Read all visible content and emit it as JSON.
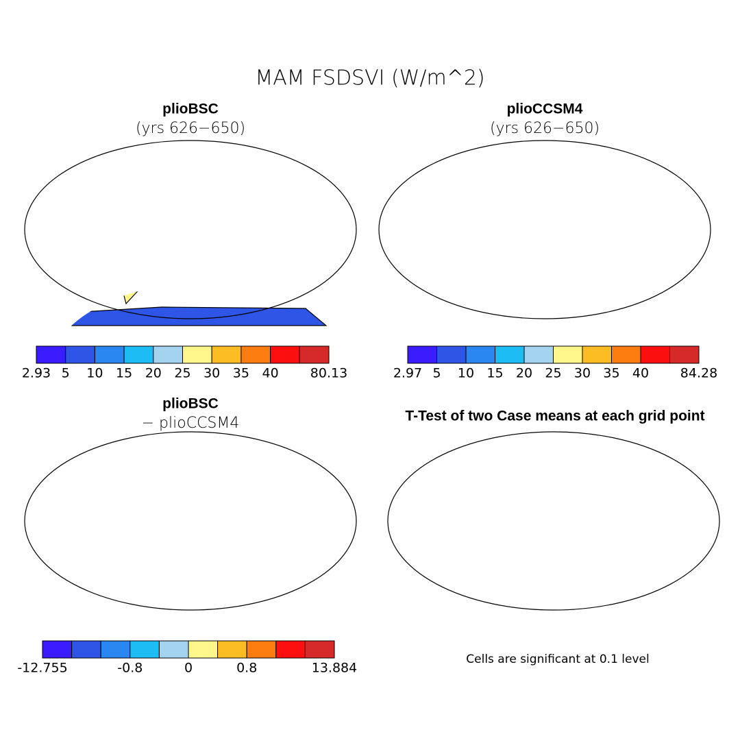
{
  "title": "MAM FSDSVI (W/m^2)",
  "panels": [
    {
      "title": "plioBSC",
      "subtitle": "(yrs 626−650)",
      "colorbar": {
        "colors": [
          "#3b1cff",
          "#2f55e6",
          "#2a86f0",
          "#1ebcf5",
          "#a3d3ef",
          "#fff68c",
          "#fcbc23",
          "#fb7d0f",
          "#fb0f0f",
          "#d62a2a"
        ],
        "labels": [
          2.93,
          5,
          10,
          15,
          20,
          25,
          30,
          35,
          40,
          null,
          80.13
        ]
      }
    },
    {
      "title": "plioCCSM4",
      "subtitle": "(yrs 626−650)",
      "colorbar": {
        "colors": [
          "#3b1cff",
          "#2f55e6",
          "#2a86f0",
          "#1ebcf5",
          "#a3d3ef",
          "#fff68c",
          "#fcbc23",
          "#fb7d0f",
          "#fb0f0f",
          "#d62a2a"
        ],
        "labels": [
          2.97,
          5,
          10,
          15,
          20,
          25,
          30,
          35,
          40,
          null,
          84.28
        ]
      }
    },
    {
      "title": "plioBSC",
      "subtitle": "− plioCCSM4",
      "colorbar": {
        "colors": [
          "#3b1cff",
          "#2f55e6",
          "#2a86f0",
          "#1ebcf5",
          "#a3d3ef",
          "#fff68c",
          "#fcbc23",
          "#fb7d0f",
          "#fb0f0f",
          "#d62a2a"
        ],
        "labels": [
          -12.755,
          null,
          null,
          -0.8,
          null,
          0,
          null,
          0.8,
          null,
          null,
          13.884
        ]
      }
    },
    {
      "title": "T-Test of two Case means at each grid point",
      "note": "Cells are significant at 0.1 level"
    }
  ]
}
